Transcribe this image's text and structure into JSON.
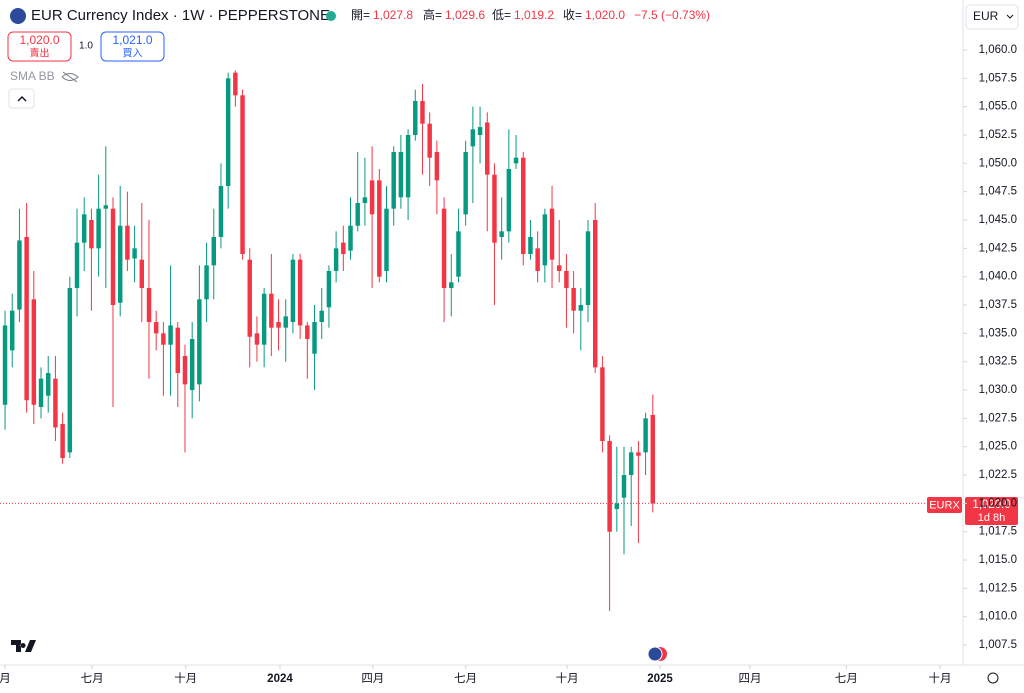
{
  "header": {
    "title": "EUR Currency Index · 1W · PEPPERSTONE",
    "open_label": "開=",
    "open": "1,027.8",
    "high_label": "高=",
    "high": "1,029.6",
    "low_label": "低=",
    "low": "1,019.2",
    "close_label": "收=",
    "close": "1,020.0",
    "change": "−7.5 (−0.73%)",
    "currency": "EUR"
  },
  "trade": {
    "sell_price": "1,020.0",
    "sell": "賣出",
    "spread": "1.0",
    "buy_price": "1,021.0",
    "buy": "買入"
  },
  "indicator": "SMA BB",
  "price_tag": {
    "symbol": "EURX",
    "price": "1,020.0",
    "countdown": "1d 8h"
  },
  "chart_data": {
    "type": "candlestick",
    "up_color": "#089981",
    "down_color": "#f23645",
    "xlim": [
      -0.7,
      133.1
    ],
    "xticks": [
      {
        "value": 0,
        "label": "月"
      },
      {
        "value": 12.1,
        "label": "七月"
      },
      {
        "value": 25.1,
        "label": "十月"
      },
      {
        "value": 38.2,
        "label": "2024"
      },
      {
        "value": 51.1,
        "label": "四月"
      },
      {
        "value": 64.0,
        "label": "七月"
      },
      {
        "value": 78.1,
        "label": "十月"
      },
      {
        "value": 91,
        "label": "2025"
      },
      {
        "value": 103.5,
        "label": "四月"
      },
      {
        "value": 116.9,
        "label": "七月"
      },
      {
        "value": 129.9,
        "label": "十月"
      }
    ],
    "ylim": [
      1005.74,
      1064.41
    ],
    "yticks": [
      {
        "value": 1060,
        "label": "1,060.0"
      },
      {
        "value": 1057.5,
        "label": "1,057.5"
      },
      {
        "value": 1055,
        "label": "1,055.0"
      },
      {
        "value": 1052.5,
        "label": "1,052.5"
      },
      {
        "value": 1050,
        "label": "1,050.0"
      },
      {
        "value": 1047.5,
        "label": "1,047.5"
      },
      {
        "value": 1045,
        "label": "1,045.0"
      },
      {
        "value": 1042.5,
        "label": "1,042.5"
      },
      {
        "value": 1040,
        "label": "1,040.0"
      },
      {
        "value": 1037.5,
        "label": "1,037.5"
      },
      {
        "value": 1035,
        "label": "1,035.0"
      },
      {
        "value": 1032.5,
        "label": "1,032.5"
      },
      {
        "value": 1030,
        "label": "1,030.0"
      },
      {
        "value": 1027.5,
        "label": "1,027.5"
      },
      {
        "value": 1025,
        "label": "1,025.0"
      },
      {
        "value": 1022.5,
        "label": "1,022.5"
      },
      {
        "value": 1020,
        "label": "1,020.0"
      },
      {
        "value": 1017.5,
        "label": "1,017.5"
      },
      {
        "value": 1015,
        "label": "1,015.0"
      },
      {
        "value": 1012.5,
        "label": "1,012.5"
      },
      {
        "value": 1010,
        "label": "1,010.0"
      },
      {
        "value": 1007.5,
        "label": "1,007.5"
      }
    ],
    "current_price": 1020,
    "x": [
      0,
      1,
      2,
      3,
      4,
      5,
      6,
      7,
      8,
      9,
      10,
      11,
      12,
      13,
      14,
      15,
      16,
      17,
      18,
      19,
      20,
      21,
      22,
      23,
      24,
      25,
      26,
      27,
      28,
      29,
      30,
      31,
      32,
      33,
      34,
      35,
      36,
      37,
      38,
      39,
      40,
      41,
      42,
      43,
      44,
      45,
      46,
      47,
      48,
      49,
      50,
      51,
      52,
      53,
      54,
      55,
      56,
      57,
      58,
      59,
      60,
      61,
      62,
      63,
      64,
      65,
      66,
      67,
      68,
      69,
      70,
      71,
      72,
      73,
      74,
      75,
      76,
      77,
      78,
      79,
      80,
      81,
      82,
      83,
      84,
      85,
      86,
      87,
      88,
      89,
      90
    ],
    "open": [
      1028.7,
      1033.5,
      1037.1,
      1043.5,
      1038,
      1028.5,
      1029.5,
      1031,
      1027,
      1024.5,
      1039,
      1043,
      1045,
      1042.5,
      1046,
      1046,
      1037.7,
      1044.5,
      1041.6,
      1041.5,
      1039,
      1036,
      1035,
      1034,
      1035.5,
      1033,
      1030,
      1030.5,
      1038,
      1041,
      1043.5,
      1048,
      1058,
      1056,
      1041.5,
      1035,
      1034,
      1038.5,
      1036,
      1035.5,
      1036,
      1041.5,
      1035.7,
      1033.2,
      1036,
      1037.3,
      1040.5,
      1043,
      1042.3,
      1044.5,
      1046.5,
      1048.5,
      1048.5,
      1040.5,
      1046,
      1047,
      1047,
      1052.5,
      1055.5,
      1053.5,
      1051,
      1046,
      1039,
      1040,
      1045.5,
      1051.5,
      1052.5,
      1053.6,
      1049,
      1043.5,
      1044,
      1050,
      1050.5,
      1042,
      1042.5,
      1041,
      1046,
      1041,
      1040.5,
      1039,
      1037,
      1037.5,
      1045,
      1032,
      1025.5,
      1019.5,
      1020.5,
      1022.5,
      1024.5,
      1024.5,
      1027.8
    ],
    "high": [
      1037,
      1038.5,
      1046,
      1046.5,
      1040.5,
      1032,
      1033,
      1033,
      1028,
      1040,
      1046,
      1047,
      1046,
      1049,
      1051.5,
      1047,
      1048,
      1047.5,
      1044.5,
      1046.5,
      1045,
      1037,
      1036,
      1041,
      1036,
      1034,
      1036,
      1041,
      1043,
      1046,
      1050,
      1058,
      1058.2,
      1056.5,
      1042.5,
      1036.5,
      1039,
      1042,
      1038,
      1038,
      1042,
      1042,
      1036,
      1037.5,
      1039,
      1041,
      1044,
      1044.5,
      1047,
      1051,
      1050.5,
      1051.5,
      1049.5,
      1048,
      1051.5,
      1052.5,
      1053,
      1056.5,
      1057,
      1054.5,
      1052,
      1047,
      1042,
      1046,
      1052,
      1055,
      1055,
      1054.5,
      1050,
      1047,
      1053,
      1052.5,
      1051,
      1045,
      1044,
      1046,
      1048,
      1045,
      1042,
      1040.5,
      1039,
      1045,
      1046.5,
      1033,
      1026,
      1025,
      1025,
      1025,
      1025.5,
      1028,
      1029.6
    ],
    "low": [
      1026.5,
      1032,
      1036,
      1028,
      1027,
      1027.5,
      1028,
      1025.5,
      1023.5,
      1024,
      1036.5,
      1040.5,
      1037,
      1040,
      1039,
      1028.5,
      1036.5,
      1040.5,
      1039.5,
      1036,
      1031,
      1033.5,
      1029.5,
      1029.5,
      1028.5,
      1024.5,
      1027.5,
      1029,
      1036,
      1038,
      1042.5,
      1046,
      1055,
      1041.5,
      1032,
      1032.5,
      1032,
      1033,
      1033.5,
      1032.5,
      1035,
      1034.5,
      1031,
      1030,
      1034.5,
      1035.5,
      1039.5,
      1040.5,
      1041.5,
      1044,
      1044.5,
      1039,
      1039.5,
      1039.5,
      1044.5,
      1046,
      1045,
      1052,
      1049,
      1048,
      1045.5,
      1036,
      1036.5,
      1039.5,
      1044.5,
      1046.5,
      1050,
      1044,
      1037.5,
      1041.5,
      1043,
      1049.5,
      1041,
      1041.5,
      1039.5,
      1039.5,
      1039,
      1039.5,
      1035.5,
      1035,
      1033.5,
      1036,
      1031.5,
      1024.5,
      1010.5,
      1017.5,
      1015.5,
      1018,
      1016.5,
      1022.5,
      1019.2
    ],
    "close": [
      1035.7,
      1037,
      1043.2,
      1029.1,
      1028.7,
      1031,
      1031.5,
      1026.7,
      1024,
      1039,
      1043,
      1045.5,
      1042.5,
      1046,
      1046.3,
      1037.5,
      1044.5,
      1041.5,
      1042.5,
      1039,
      1036,
      1035,
      1034,
      1035.7,
      1031.5,
      1030.5,
      1034.5,
      1038,
      1041,
      1043.5,
      1048,
      1057.5,
      1056,
      1042,
      1034.7,
      1034,
      1038.5,
      1035.5,
      1035.5,
      1036.5,
      1041.5,
      1035.7,
      1034.5,
      1036,
      1037,
      1040.5,
      1042.5,
      1042,
      1044.5,
      1046.5,
      1047,
      1045.5,
      1040,
      1046,
      1051,
      1051,
      1052.5,
      1055.5,
      1053.5,
      1050.5,
      1048.5,
      1039,
      1039.5,
      1044,
      1051,
      1053,
      1053.2,
      1049,
      1043,
      1044,
      1049.5,
      1050.5,
      1042,
      1043.5,
      1040.5,
      1045.5,
      1041.5,
      1040.5,
      1039,
      1037,
      1037.5,
      1044,
      1032,
      1025.5,
      1017.5,
      1020,
      1022.5,
      1024.5,
      1024.2,
      1027.5,
      1020
    ]
  }
}
